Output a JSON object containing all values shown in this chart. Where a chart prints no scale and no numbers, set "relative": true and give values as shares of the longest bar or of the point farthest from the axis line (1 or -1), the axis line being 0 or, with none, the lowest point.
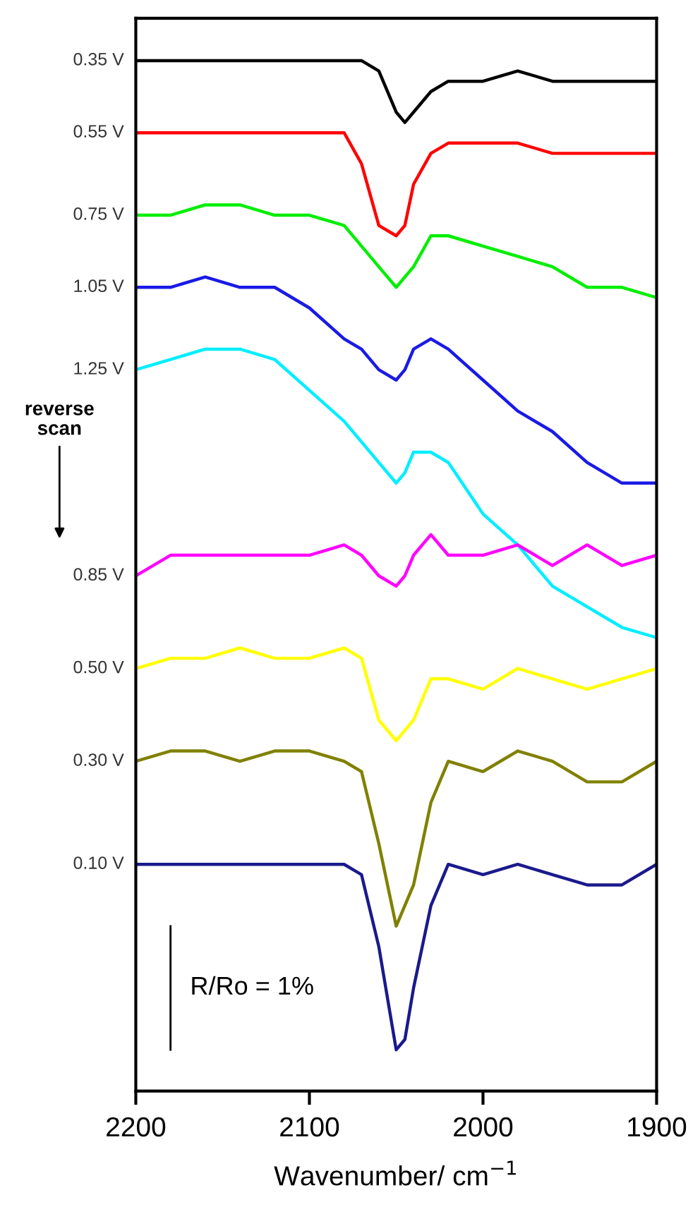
{
  "chart_data": {
    "type": "line",
    "relative": true,
    "xlabel": "Wavenumber/ cm$^{−1}$",
    "xlim": [
      2200,
      1900
    ],
    "xticks": [
      2200,
      2100,
      2000,
      1900
    ],
    "grid": false,
    "legend": false,
    "marker": "none",
    "line_style": "solid",
    "x": [
      2200,
      2180,
      2160,
      2140,
      2120,
      2100,
      2080,
      2070,
      2060,
      2050,
      2045,
      2040,
      2030,
      2020,
      2000,
      1980,
      1960,
      1940,
      1920,
      1900
    ],
    "annotations": [
      "reverse scan",
      {
        "text": "R/Ro = 1%",
        "x": 2180,
        "y": 0.1
      }
    ],
    "series": [
      {
        "name": "0.35 V",
        "color": "#000000",
        "values": [
          1.0,
          1.0,
          1.0,
          1.0,
          1.0,
          1.0,
          1.0,
          1.0,
          0.99,
          0.95,
          0.94,
          0.95,
          0.97,
          0.98,
          0.98,
          0.99,
          0.98,
          0.98,
          0.98,
          0.98
        ]
      },
      {
        "name": "0.55 V",
        "color": "#ff0000",
        "values": [
          0.93,
          0.93,
          0.93,
          0.93,
          0.93,
          0.93,
          0.93,
          0.9,
          0.84,
          0.83,
          0.84,
          0.88,
          0.91,
          0.92,
          0.92,
          0.92,
          0.91,
          0.91,
          0.91,
          0.91
        ]
      },
      {
        "name": "0.75 V",
        "color": "#00ee00",
        "values": [
          0.85,
          0.85,
          0.86,
          0.86,
          0.85,
          0.85,
          0.84,
          0.82,
          0.8,
          0.78,
          0.79,
          0.8,
          0.83,
          0.83,
          0.82,
          0.81,
          0.8,
          0.78,
          0.78,
          0.77
        ]
      },
      {
        "name": "1.05 V",
        "color": "#1a1ae6",
        "values": [
          0.78,
          0.78,
          0.79,
          0.78,
          0.78,
          0.76,
          0.73,
          0.72,
          0.7,
          0.69,
          0.7,
          0.72,
          0.73,
          0.72,
          0.69,
          0.66,
          0.64,
          0.61,
          0.59,
          0.59
        ]
      },
      {
        "name": "1.25 V",
        "color": "#00eeff",
        "values": [
          0.7,
          0.71,
          0.72,
          0.72,
          0.71,
          0.68,
          0.65,
          0.63,
          0.61,
          0.59,
          0.6,
          0.62,
          0.62,
          0.61,
          0.56,
          0.53,
          0.49,
          0.47,
          0.45,
          0.44
        ]
      },
      {
        "name": "0.85 V",
        "color": "#ff00ff",
        "values": [
          0.5,
          0.52,
          0.52,
          0.52,
          0.52,
          0.52,
          0.53,
          0.52,
          0.5,
          0.49,
          0.5,
          0.52,
          0.54,
          0.52,
          0.52,
          0.53,
          0.51,
          0.53,
          0.51,
          0.52
        ]
      },
      {
        "name": "0.50 V",
        "color": "#ffff00",
        "values": [
          0.41,
          0.42,
          0.42,
          0.43,
          0.42,
          0.42,
          0.43,
          0.42,
          0.36,
          0.34,
          0.35,
          0.36,
          0.4,
          0.4,
          0.39,
          0.41,
          0.4,
          0.39,
          0.4,
          0.41
        ]
      },
      {
        "name": "0.30 V",
        "color": "#808000",
        "values": [
          0.32,
          0.33,
          0.33,
          0.32,
          0.33,
          0.33,
          0.32,
          0.31,
          0.24,
          0.16,
          0.18,
          0.2,
          0.28,
          0.32,
          0.31,
          0.33,
          0.32,
          0.3,
          0.3,
          0.32
        ]
      },
      {
        "name": "0.10 V",
        "color": "#1a1a8c",
        "values": [
          0.22,
          0.22,
          0.22,
          0.22,
          0.22,
          0.22,
          0.22,
          0.21,
          0.14,
          0.04,
          0.05,
          0.1,
          0.18,
          0.22,
          0.21,
          0.22,
          0.21,
          0.2,
          0.2,
          0.22
        ]
      },
      {
        "type": "line",
        "color": "#000000",
        "x": [
          2180,
          2180
        ],
        "values": [
          0.04,
          0.16
        ]
      }
    ]
  }
}
